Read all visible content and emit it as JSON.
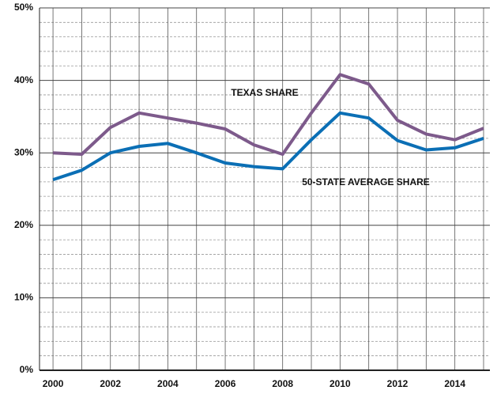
{
  "chart_data": {
    "type": "line",
    "x": [
      2000,
      2001,
      2002,
      2003,
      2004,
      2005,
      2006,
      2007,
      2008,
      2009,
      2010,
      2011,
      2012,
      2013,
      2014,
      2015
    ],
    "series": [
      {
        "name": "TEXAS SHARE",
        "color": "#7d5a8b",
        "values": [
          30.0,
          29.8,
          33.5,
          35.5,
          34.8,
          34.1,
          33.3,
          31.1,
          29.8,
          35.5,
          40.8,
          39.5,
          34.5,
          32.6,
          31.8,
          33.4
        ]
      },
      {
        "name": "50-STATE AVERAGE SHARE",
        "color": "#0b6fb5",
        "values": [
          26.3,
          27.6,
          30.0,
          30.9,
          31.3,
          30.0,
          28.6,
          28.1,
          27.8,
          31.8,
          35.5,
          34.8,
          31.7,
          30.4,
          30.7,
          32.0
        ]
      }
    ],
    "xlim": [
      1999.53,
      2015.22
    ],
    "xticks": [
      2000,
      2002,
      2004,
      2006,
      2008,
      2010,
      2012,
      2014
    ],
    "ylim": [
      0,
      50
    ],
    "yticks": [
      {
        "value": 0,
        "label": "0%"
      },
      {
        "value": 10,
        "label": "10%"
      },
      {
        "value": 20,
        "label": "20%"
      },
      {
        "value": 30,
        "label": "30%"
      },
      {
        "value": 40,
        "label": "40%"
      },
      {
        "value": 50,
        "label": "50%"
      }
    ],
    "minor_yticks": [
      2,
      4,
      6,
      8,
      12,
      14,
      16,
      18,
      22,
      24,
      26,
      28,
      32,
      34,
      36,
      38,
      42,
      44,
      46,
      48
    ],
    "grid": true
  }
}
